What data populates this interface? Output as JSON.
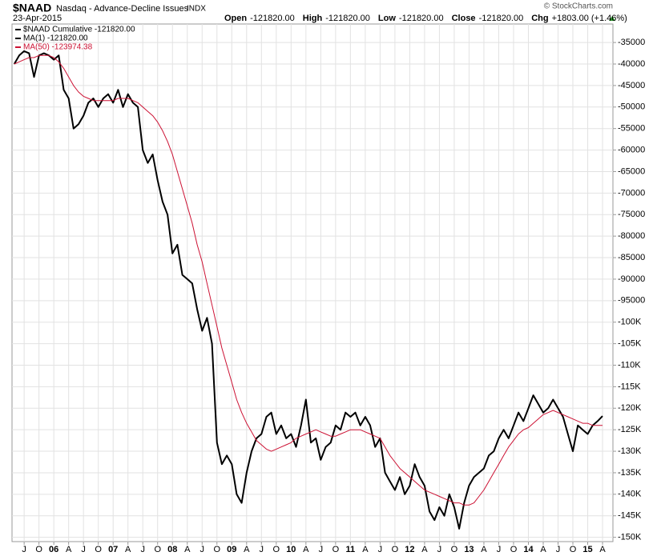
{
  "chart_data": {
    "type": "line",
    "title": "$NAAD",
    "subtitle": "Nasdaq - Advance-Decline Issues",
    "exchange": "INDX",
    "date": "23-Apr-2015",
    "quote": [
      {
        "label": "Open",
        "value": "-121820.00"
      },
      {
        "label": "High",
        "value": "-121820.00"
      },
      {
        "label": "Low",
        "value": "-121820.00"
      },
      {
        "label": "Close",
        "value": "-121820.00"
      },
      {
        "label": "Chg",
        "value": "+1803.00 (+1.46%)"
      }
    ],
    "copyright": "© StockCharts.com",
    "ma1_label": "MA(1) -121820.00",
    "categories": [
      null,
      null,
      "J",
      null,
      null,
      "O",
      null,
      null,
      "06",
      null,
      null,
      "A",
      null,
      null,
      "J",
      null,
      null,
      "O",
      null,
      null,
      "07",
      null,
      null,
      "A",
      null,
      null,
      "J",
      null,
      null,
      "O",
      null,
      null,
      "08",
      null,
      null,
      "A",
      null,
      null,
      "J",
      null,
      null,
      "O",
      null,
      null,
      "09",
      null,
      null,
      "A",
      null,
      null,
      "J",
      null,
      null,
      "O",
      null,
      null,
      "10",
      null,
      null,
      "A",
      null,
      null,
      "J",
      null,
      null,
      "O",
      null,
      null,
      "11",
      null,
      null,
      "A",
      null,
      null,
      "J",
      null,
      null,
      "O",
      null,
      null,
      "12",
      null,
      null,
      "A",
      null,
      null,
      "J",
      null,
      null,
      "O",
      null,
      null,
      "13",
      null,
      null,
      "A",
      null,
      null,
      "J",
      null,
      null,
      "O",
      null,
      null,
      "14",
      null,
      null,
      "A",
      null,
      null,
      "J",
      null,
      null,
      "O",
      null,
      null,
      "15",
      null,
      null,
      "A"
    ],
    "series": [
      {
        "name": "$NAAD Cumulative -121820.00",
        "color": "#000000",
        "width": 2,
        "values": [
          -40000,
          -38000,
          -37000,
          -37500,
          -43000,
          -38000,
          -37500,
          -38000,
          -39000,
          -38000,
          -46000,
          -48000,
          -55000,
          -54000,
          -52000,
          -49000,
          -48000,
          -50000,
          -48000,
          -47000,
          -49000,
          -46000,
          -50000,
          -47000,
          -49000,
          -50000,
          -60000,
          -63000,
          -61000,
          -67000,
          -72000,
          -75000,
          -84000,
          -82000,
          -89000,
          -90000,
          -91000,
          -97000,
          -102000,
          -99000,
          -105000,
          -128000,
          -133000,
          -131000,
          -133000,
          -140000,
          -142000,
          -135000,
          -130000,
          -127000,
          -126000,
          -122000,
          -121000,
          -126000,
          -124000,
          -127000,
          -126000,
          -129000,
          -124000,
          -118000,
          -128000,
          -127000,
          -132000,
          -129000,
          -128000,
          -124000,
          -125000,
          -121000,
          -122000,
          -121000,
          -124000,
          -122000,
          -124000,
          -129000,
          -127000,
          -135000,
          -137000,
          -139000,
          -136000,
          -140000,
          -138000,
          -133000,
          -136000,
          -138000,
          -144000,
          -146000,
          -143000,
          -145000,
          -140000,
          -143000,
          -148000,
          -142000,
          -138000,
          -136000,
          -135000,
          -134000,
          -131000,
          -130000,
          -127000,
          -125000,
          -127000,
          -124000,
          -121000,
          -123000,
          -120000,
          -117000,
          -119000,
          -121000,
          -120000,
          -118000,
          -120000,
          -122000,
          -126000,
          -130000,
          -124000,
          -125000,
          -126000,
          -124000,
          -123000,
          -121820
        ]
      },
      {
        "name": "MA(50) -123974.38",
        "color": "#cc1133",
        "width": 1,
        "values": [
          -40000,
          -39500,
          -39000,
          -38500,
          -38500,
          -38000,
          -38000,
          -38000,
          -38500,
          -39500,
          -41000,
          -43000,
          -45000,
          -46500,
          -47500,
          -48000,
          -48500,
          -48500,
          -48500,
          -48500,
          -48500,
          -48000,
          -48000,
          -48000,
          -48500,
          -49000,
          -50000,
          -51000,
          -52000,
          -53500,
          -55500,
          -58000,
          -61000,
          -65000,
          -69000,
          -73000,
          -77000,
          -82000,
          -86000,
          -91000,
          -96000,
          -101000,
          -106000,
          -110000,
          -114000,
          -118000,
          -121000,
          -123500,
          -125500,
          -127500,
          -128500,
          -129500,
          -130000,
          -129500,
          -129000,
          -128500,
          -128000,
          -127000,
          -126500,
          -126000,
          -125500,
          -125000,
          -125500,
          -126000,
          -126500,
          -126500,
          -126000,
          -125500,
          -125000,
          -125000,
          -125000,
          -125500,
          -126000,
          -126500,
          -127000,
          -129000,
          -131000,
          -132500,
          -134000,
          -135000,
          -136000,
          -137000,
          -138000,
          -139000,
          -139500,
          -140000,
          -140500,
          -141000,
          -141500,
          -142000,
          -142000,
          -142500,
          -142500,
          -142000,
          -140500,
          -139000,
          -137000,
          -135000,
          -133000,
          -131000,
          -129000,
          -127500,
          -126000,
          -125000,
          -124500,
          -123500,
          -122500,
          -121500,
          -121000,
          -120500,
          -121000,
          -121500,
          -122000,
          -122500,
          -123000,
          -123500,
          -123500,
          -124000,
          -124000,
          -123974.38
        ]
      }
    ],
    "ylim": [
      -151000,
      -30700
    ],
    "yticks": [
      -35000,
      -40000,
      -45000,
      -50000,
      -55000,
      -60000,
      -65000,
      -70000,
      -75000,
      -80000,
      -85000,
      -90000,
      -95000,
      {
        "value": -100000,
        "label": "-100K"
      },
      {
        "value": -105000,
        "label": "-105K"
      },
      {
        "value": -110000,
        "label": "-110K"
      },
      {
        "value": -115000,
        "label": "-115K"
      },
      {
        "value": -120000,
        "label": "-120K"
      },
      {
        "value": -125000,
        "label": "-125K"
      },
      {
        "value": -130000,
        "label": "-130K"
      },
      {
        "value": -135000,
        "label": "-135K"
      },
      {
        "value": -140000,
        "label": "-140K"
      },
      {
        "value": -145000,
        "label": "-145K"
      },
      {
        "value": -150000,
        "label": "-150K"
      }
    ],
    "y_axis_side": "right",
    "grid": true
  }
}
